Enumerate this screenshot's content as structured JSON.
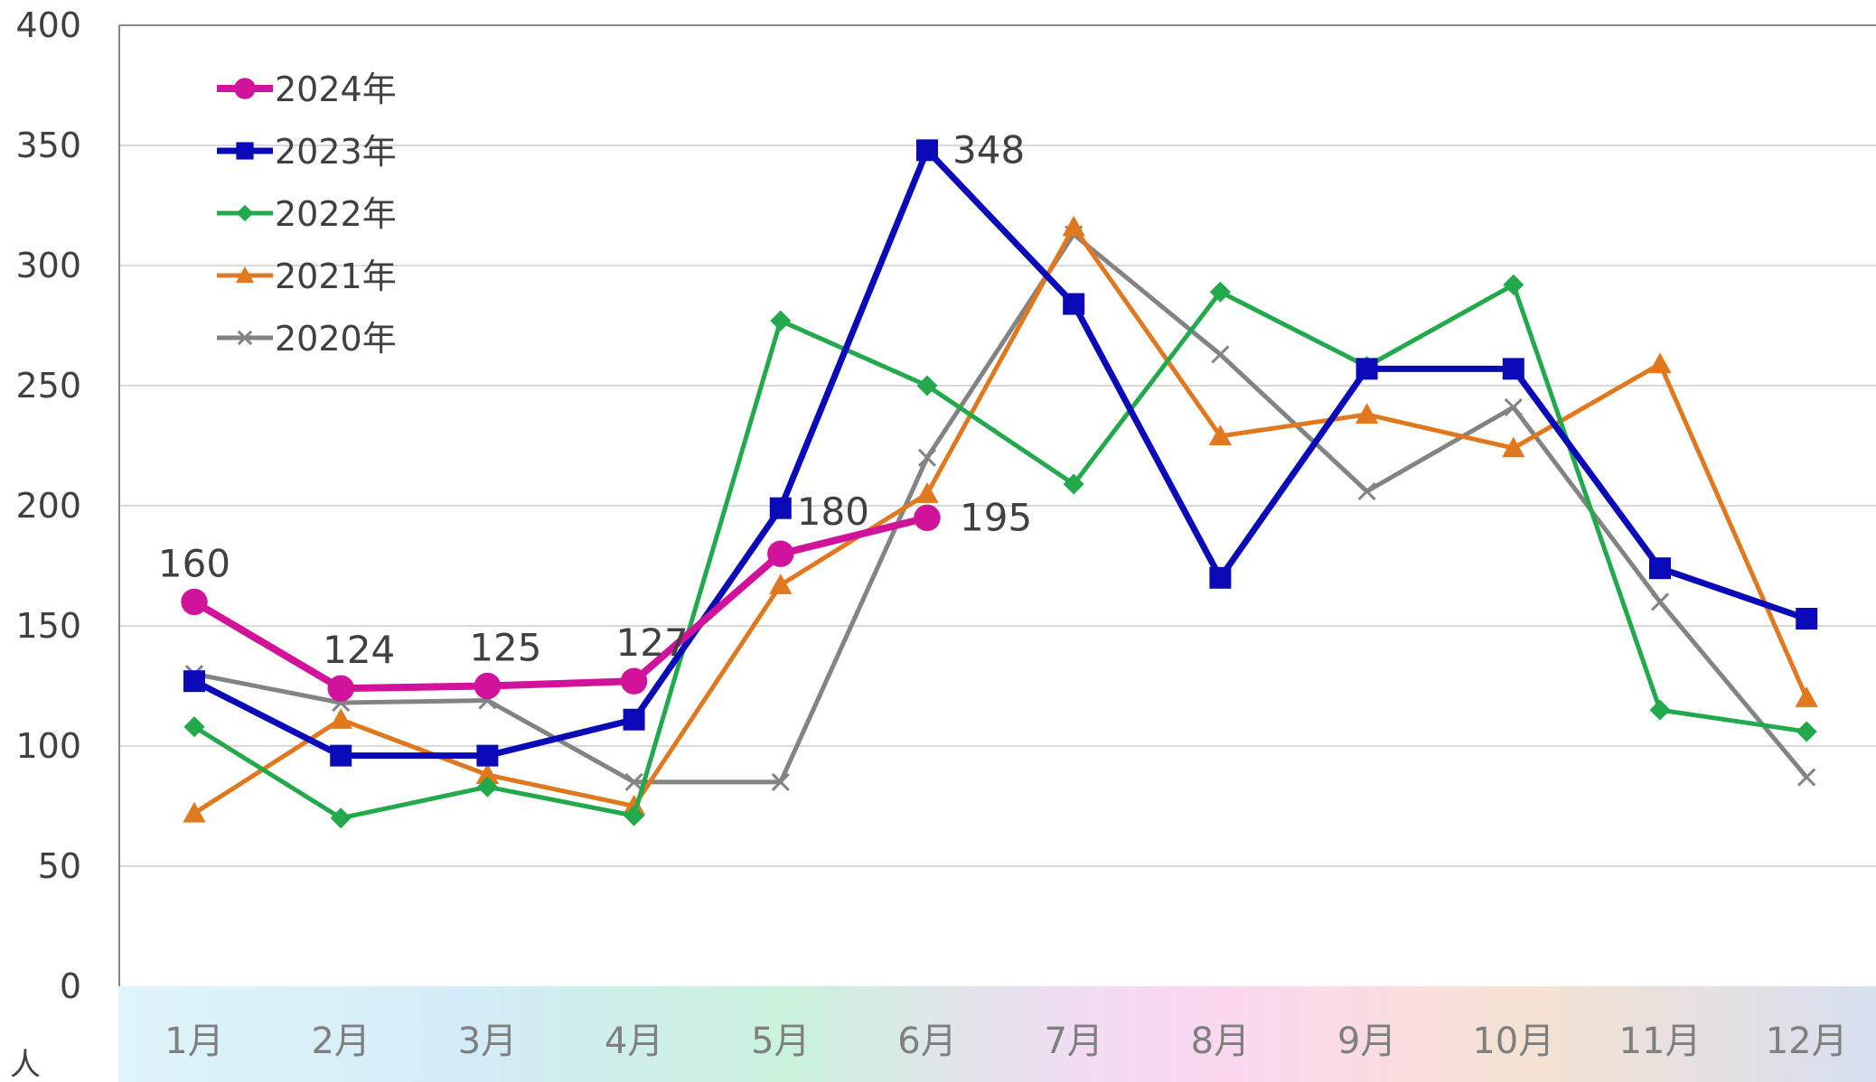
{
  "chart_data": {
    "type": "line",
    "categories": [
      "1月",
      "2月",
      "3月",
      "4月",
      "5月",
      "6月",
      "7月",
      "8月",
      "9月",
      "10月",
      "11月",
      "12月"
    ],
    "ylim": [
      0,
      400
    ],
    "yticks": [
      0,
      50,
      100,
      150,
      200,
      250,
      300,
      350,
      400
    ],
    "y_unit": "人",
    "grid": true,
    "legend_position": "top-left",
    "series": [
      {
        "name": "2024年",
        "color": "#d0139a",
        "marker": "circle",
        "values": [
          160,
          124,
          125,
          127,
          180,
          195,
          null,
          null,
          null,
          null,
          null,
          null
        ],
        "labeled": [
          true,
          true,
          true,
          true,
          true,
          true,
          false,
          false,
          false,
          false,
          false,
          false
        ]
      },
      {
        "name": "2023年",
        "color": "#0a0ab8",
        "marker": "square",
        "values": [
          127,
          96,
          96,
          111,
          199,
          348,
          284,
          170,
          257,
          257,
          174,
          153
        ],
        "labeled": [
          false,
          false,
          false,
          false,
          false,
          true,
          false,
          false,
          false,
          false,
          false,
          false
        ]
      },
      {
        "name": "2022年",
        "color": "#22a94b",
        "marker": "diamond",
        "values": [
          108,
          70,
          83,
          71,
          277,
          250,
          209,
          289,
          258,
          292,
          115,
          106
        ],
        "labeled": [
          false,
          false,
          false,
          false,
          false,
          false,
          false,
          false,
          false,
          false,
          false,
          false
        ]
      },
      {
        "name": "2021年",
        "color": "#e07820",
        "marker": "triangle",
        "values": [
          72,
          111,
          88,
          75,
          167,
          205,
          316,
          229,
          238,
          224,
          259,
          120
        ],
        "labeled": [
          false,
          false,
          false,
          false,
          false,
          false,
          false,
          false,
          false,
          false,
          false,
          false
        ]
      },
      {
        "name": "2020年",
        "color": "#838383",
        "marker": "x",
        "values": [
          130,
          118,
          119,
          85,
          85,
          220,
          313,
          263,
          206,
          241,
          160,
          87
        ],
        "labeled": [
          false,
          false,
          false,
          false,
          false,
          false,
          false,
          false,
          false,
          false,
          false,
          false
        ]
      }
    ]
  }
}
